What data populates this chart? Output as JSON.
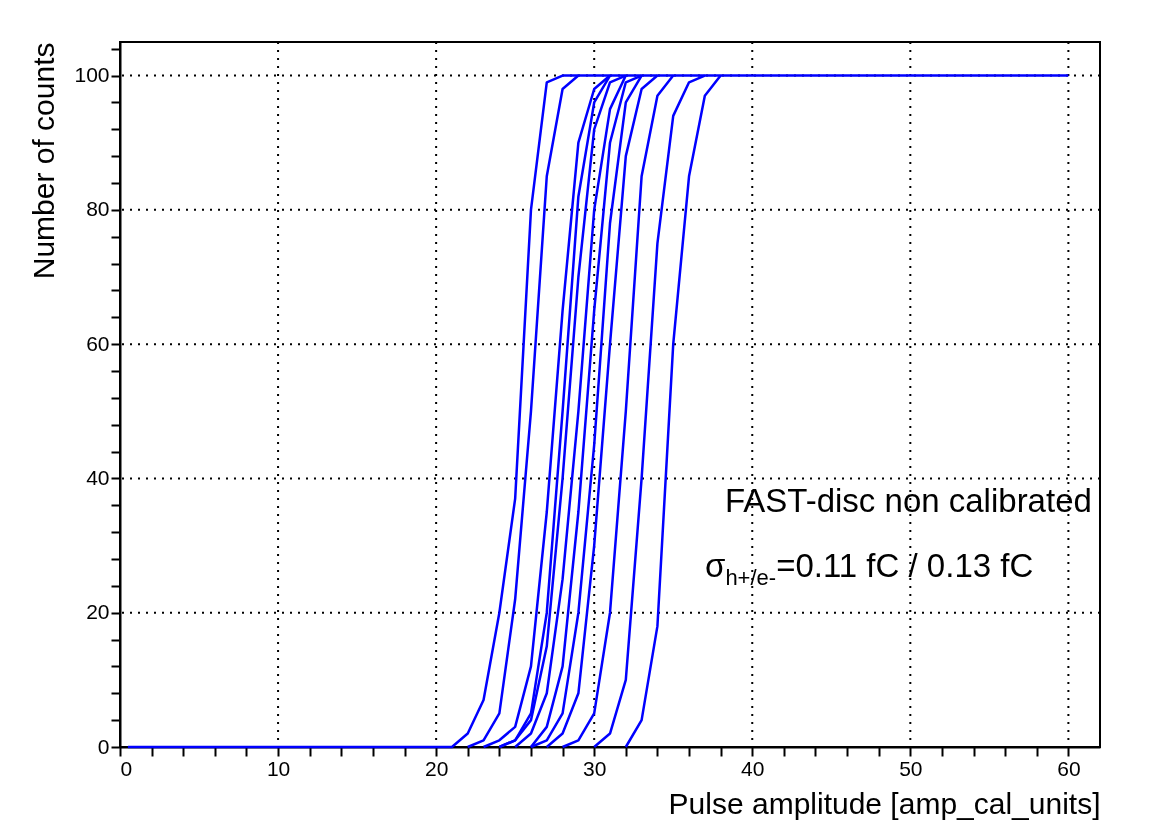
{
  "chart_data": {
    "type": "line",
    "xlabel": "Pulse amplitude [amp_cal_units]",
    "ylabel": "Number of counts",
    "annotations": [
      "FAST-disc non calibrated",
      "σ$_{h+/e-}$=0.11 fC / 0.13 fC"
    ],
    "series": [
      {
        "color": "#0000ff",
        "x": [
          0.5,
          20,
          21,
          22,
          23,
          24,
          25,
          26,
          27,
          28,
          60
        ],
        "values": [
          0,
          0,
          0,
          2,
          7,
          20,
          37,
          80,
          99,
          100,
          100
        ]
      },
      {
        "color": "#0000ff",
        "x": [
          22,
          23,
          24,
          25,
          26,
          27,
          28,
          29
        ],
        "values": [
          0,
          1,
          5,
          22,
          50,
          85,
          98,
          100
        ]
      },
      {
        "color": "#0000ff",
        "x": [
          24,
          25,
          26,
          27,
          28,
          29,
          30,
          31
        ],
        "values": [
          0,
          1,
          5,
          20,
          50,
          82,
          96,
          100
        ]
      },
      {
        "color": "#0000ff",
        "x": [
          23,
          24,
          25,
          26,
          27,
          28,
          29,
          30,
          31
        ],
        "values": [
          0,
          1,
          3,
          12,
          35,
          65,
          90,
          98,
          100
        ]
      },
      {
        "color": "#0000ff",
        "x": [
          24,
          25,
          26,
          27,
          28,
          29,
          30,
          31,
          32
        ],
        "values": [
          0,
          1,
          4,
          15,
          40,
          70,
          92,
          99,
          100
        ]
      },
      {
        "color": "#0000ff",
        "x": [
          25,
          26,
          27,
          28,
          29,
          30,
          31,
          32
        ],
        "values": [
          0,
          2,
          8,
          25,
          50,
          80,
          95,
          100
        ]
      },
      {
        "color": "#0000ff",
        "x": [
          26,
          27,
          28,
          29,
          30,
          31,
          32,
          33
        ],
        "values": [
          0,
          3,
          12,
          35,
          65,
          90,
          99,
          100
        ]
      },
      {
        "color": "#0000ff",
        "x": [
          26,
          27,
          28,
          29,
          30,
          31,
          32,
          33
        ],
        "values": [
          0,
          1,
          5,
          20,
          45,
          78,
          96,
          100
        ]
      },
      {
        "color": "#0000ff",
        "x": [
          27,
          28,
          29,
          30,
          31,
          32,
          33,
          34
        ],
        "values": [
          0,
          2,
          8,
          30,
          60,
          88,
          98,
          100
        ]
      },
      {
        "color": "#0000ff",
        "x": [
          28,
          29,
          30,
          31,
          32,
          33,
          34,
          35
        ],
        "values": [
          0,
          1,
          5,
          20,
          50,
          85,
          97,
          100
        ]
      },
      {
        "color": "#0000ff",
        "x": [
          30,
          31,
          32,
          33,
          34,
          35,
          36,
          37
        ],
        "values": [
          0,
          2,
          10,
          40,
          75,
          94,
          99,
          100
        ]
      },
      {
        "color": "#0000ff",
        "x": [
          32,
          33,
          34,
          35,
          36,
          37,
          38
        ],
        "values": [
          0,
          4,
          18,
          60,
          85,
          97,
          100
        ]
      }
    ],
    "xlim": [
      0,
      62
    ],
    "ylim": [
      0,
      105
    ],
    "xticks": [
      0,
      {
        "value": 2,
        "label": null
      },
      {
        "value": 4,
        "label": null
      },
      {
        "value": 6,
        "label": null
      },
      {
        "value": 8,
        "label": null
      },
      10,
      {
        "value": 12,
        "label": null
      },
      {
        "value": 14,
        "label": null
      },
      {
        "value": 16,
        "label": null
      },
      {
        "value": 18,
        "label": null
      },
      20,
      {
        "value": 22,
        "label": null
      },
      {
        "value": 24,
        "label": null
      },
      {
        "value": 26,
        "label": null
      },
      {
        "value": 28,
        "label": null
      },
      30,
      {
        "value": 32,
        "label": null
      },
      {
        "value": 34,
        "label": null
      },
      {
        "value": 36,
        "label": null
      },
      {
        "value": 38,
        "label": null
      },
      40,
      {
        "value": 42,
        "label": null
      },
      {
        "value": 44,
        "label": null
      },
      {
        "value": 46,
        "label": null
      },
      {
        "value": 48,
        "label": null
      },
      50,
      {
        "value": 52,
        "label": null
      },
      {
        "value": 54,
        "label": null
      },
      {
        "value": 56,
        "label": null
      },
      {
        "value": 58,
        "label": null
      },
      60
    ],
    "yticks": [
      0,
      {
        "value": 4,
        "label": null
      },
      {
        "value": 8,
        "label": null
      },
      {
        "value": 12,
        "label": null
      },
      {
        "value": 16,
        "label": null
      },
      20,
      {
        "value": 24,
        "label": null
      },
      {
        "value": 28,
        "label": null
      },
      {
        "value": 32,
        "label": null
      },
      {
        "value": 36,
        "label": null
      },
      40,
      {
        "value": 44,
        "label": null
      },
      {
        "value": 48,
        "label": null
      },
      {
        "value": 52,
        "label": null
      },
      {
        "value": 56,
        "label": null
      },
      60,
      {
        "value": 64,
        "label": null
      },
      {
        "value": 68,
        "label": null
      },
      {
        "value": 72,
        "label": null
      },
      {
        "value": 76,
        "label": null
      },
      80,
      {
        "value": 84,
        "label": null
      },
      {
        "value": 88,
        "label": null
      },
      {
        "value": 92,
        "label": null
      },
      {
        "value": 96,
        "label": null
      },
      100,
      {
        "value": 104,
        "label": null
      }
    ],
    "grid": true,
    "marker": "none",
    "line_style": "solid"
  }
}
